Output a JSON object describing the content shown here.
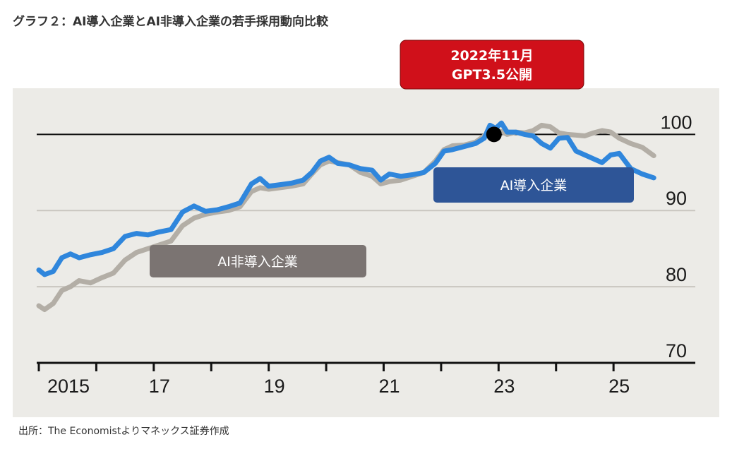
{
  "title": "グラフ２：AI導入企業とAI非導入企業の若手採用動向比較",
  "source": "出所：The Economistよりマネックス証券作成",
  "colors": {
    "ai_adopters": "#2f86dc",
    "non_adopters": "#b3aea6",
    "annotation_box": "#d0101a",
    "adopters_label_box": "#2e5597",
    "non_adopters_label_box": "#7b7472",
    "background_panel": "#ecebe7"
  },
  "chart_data": {
    "type": "line",
    "title": "",
    "xlabel": "",
    "ylabel": "",
    "ylim": [
      70,
      103
    ],
    "xlim": [
      2015,
      2026.3
    ],
    "yticks": [
      70,
      80,
      90,
      100
    ],
    "x_tick_labels": [
      "2015",
      "17",
      "19",
      "21",
      "23",
      "25"
    ],
    "x_tick_positions": [
      2015,
      2017,
      2019,
      2021,
      2023,
      2025
    ],
    "x_minor_ticks": [
      2015,
      2016,
      2017,
      2018,
      2019,
      2020,
      2021,
      2022,
      2023,
      2024,
      2025
    ],
    "grid": "horizontal at 80 and 90; solid reference line at 100",
    "series": [
      {
        "name": "AI導入企業",
        "color": "#2f86dc",
        "points": [
          [
            2015.0,
            82.2
          ],
          [
            2015.1,
            81.6
          ],
          [
            2015.25,
            82.0
          ],
          [
            2015.4,
            83.8
          ],
          [
            2015.55,
            84.3
          ],
          [
            2015.7,
            83.8
          ],
          [
            2015.9,
            84.2
          ],
          [
            2016.1,
            84.5
          ],
          [
            2016.3,
            85.0
          ],
          [
            2016.5,
            86.6
          ],
          [
            2016.7,
            87.0
          ],
          [
            2016.9,
            86.8
          ],
          [
            2017.1,
            87.2
          ],
          [
            2017.3,
            87.5
          ],
          [
            2017.5,
            89.8
          ],
          [
            2017.7,
            90.6
          ],
          [
            2017.9,
            89.9
          ],
          [
            2018.1,
            90.1
          ],
          [
            2018.3,
            90.5
          ],
          [
            2018.5,
            91.0
          ],
          [
            2018.7,
            93.5
          ],
          [
            2018.85,
            94.2
          ],
          [
            2019.0,
            93.2
          ],
          [
            2019.2,
            93.4
          ],
          [
            2019.4,
            93.6
          ],
          [
            2019.6,
            94.0
          ],
          [
            2019.75,
            95.0
          ],
          [
            2019.9,
            96.5
          ],
          [
            2020.05,
            97.0
          ],
          [
            2020.2,
            96.2
          ],
          [
            2020.4,
            96.0
          ],
          [
            2020.6,
            95.5
          ],
          [
            2020.8,
            95.3
          ],
          [
            2020.95,
            94.0
          ],
          [
            2021.1,
            94.8
          ],
          [
            2021.3,
            94.5
          ],
          [
            2021.5,
            94.7
          ],
          [
            2021.7,
            95.0
          ],
          [
            2021.9,
            96.2
          ],
          [
            2022.05,
            97.8
          ],
          [
            2022.2,
            98.0
          ],
          [
            2022.4,
            98.4
          ],
          [
            2022.6,
            98.8
          ],
          [
            2022.75,
            99.5
          ],
          [
            2022.85,
            101.2
          ],
          [
            2022.95,
            100.8
          ],
          [
            2023.05,
            101.5
          ],
          [
            2023.15,
            100.3
          ],
          [
            2023.3,
            100.3
          ],
          [
            2023.45,
            100.0
          ],
          [
            2023.6,
            99.8
          ],
          [
            2023.75,
            98.8
          ],
          [
            2023.9,
            98.2
          ],
          [
            2024.05,
            99.5
          ],
          [
            2024.2,
            99.6
          ],
          [
            2024.35,
            97.8
          ],
          [
            2024.5,
            97.3
          ],
          [
            2024.65,
            96.8
          ],
          [
            2024.8,
            96.3
          ],
          [
            2024.95,
            97.3
          ],
          [
            2025.1,
            97.5
          ],
          [
            2025.3,
            95.5
          ],
          [
            2025.5,
            94.8
          ],
          [
            2025.7,
            94.3
          ]
        ]
      },
      {
        "name": "AI非導入企業",
        "color": "#b3aea6",
        "points": [
          [
            2015.0,
            77.5
          ],
          [
            2015.1,
            77.0
          ],
          [
            2015.25,
            77.8
          ],
          [
            2015.4,
            79.5
          ],
          [
            2015.55,
            80.0
          ],
          [
            2015.7,
            80.8
          ],
          [
            2015.9,
            80.5
          ],
          [
            2016.1,
            81.2
          ],
          [
            2016.3,
            81.8
          ],
          [
            2016.5,
            83.5
          ],
          [
            2016.7,
            84.5
          ],
          [
            2016.9,
            85.0
          ],
          [
            2017.1,
            85.5
          ],
          [
            2017.3,
            86.0
          ],
          [
            2017.5,
            88.0
          ],
          [
            2017.7,
            89.0
          ],
          [
            2017.9,
            89.5
          ],
          [
            2018.1,
            89.8
          ],
          [
            2018.3,
            90.0
          ],
          [
            2018.5,
            90.5
          ],
          [
            2018.7,
            92.5
          ],
          [
            2018.85,
            93.0
          ],
          [
            2019.0,
            92.8
          ],
          [
            2019.2,
            93.0
          ],
          [
            2019.4,
            93.2
          ],
          [
            2019.6,
            93.5
          ],
          [
            2019.75,
            94.8
          ],
          [
            2019.9,
            96.0
          ],
          [
            2020.05,
            96.5
          ],
          [
            2020.2,
            96.3
          ],
          [
            2020.4,
            96.0
          ],
          [
            2020.6,
            95.0
          ],
          [
            2020.8,
            94.5
          ],
          [
            2020.95,
            93.5
          ],
          [
            2021.1,
            93.8
          ],
          [
            2021.3,
            94.0
          ],
          [
            2021.5,
            94.5
          ],
          [
            2021.7,
            95.0
          ],
          [
            2021.9,
            96.5
          ],
          [
            2022.05,
            98.0
          ],
          [
            2022.2,
            98.5
          ],
          [
            2022.4,
            98.6
          ],
          [
            2022.6,
            99.0
          ],
          [
            2022.75,
            99.8
          ],
          [
            2022.85,
            100.3
          ],
          [
            2022.95,
            100.2
          ],
          [
            2023.05,
            100.4
          ],
          [
            2023.15,
            100.0
          ],
          [
            2023.3,
            100.3
          ],
          [
            2023.45,
            100.2
          ],
          [
            2023.6,
            100.5
          ],
          [
            2023.75,
            101.2
          ],
          [
            2023.9,
            101.0
          ],
          [
            2024.05,
            100.2
          ],
          [
            2024.2,
            100.0
          ],
          [
            2024.35,
            99.9
          ],
          [
            2024.5,
            99.8
          ],
          [
            2024.65,
            100.2
          ],
          [
            2024.8,
            100.5
          ],
          [
            2024.95,
            100.3
          ],
          [
            2025.1,
            99.5
          ],
          [
            2025.3,
            98.8
          ],
          [
            2025.5,
            98.3
          ],
          [
            2025.7,
            97.2
          ]
        ]
      }
    ],
    "annotations": [
      {
        "text_line1": "2022年11月",
        "text_line2": "GPT3.5公開",
        "marker": [
          2022.92,
          100
        ]
      }
    ],
    "series_labels": [
      {
        "text": "AI導入企業",
        "series": "AI導入企業"
      },
      {
        "text": "AI非導入企業",
        "series": "AI非導入企業"
      }
    ]
  }
}
